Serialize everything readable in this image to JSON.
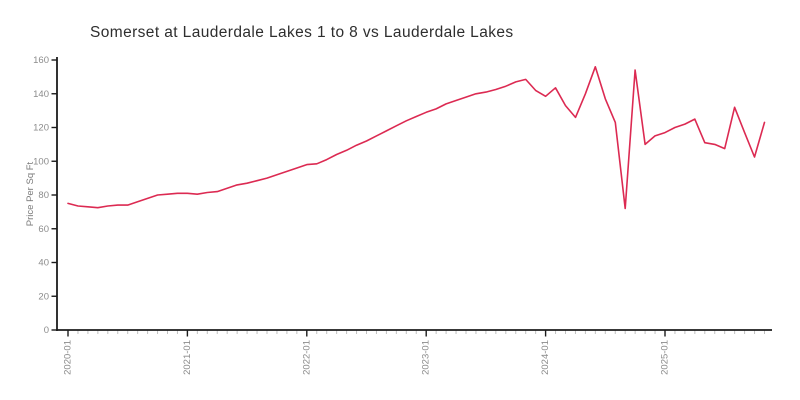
{
  "chart_data": {
    "type": "line",
    "title": "Somerset at Lauderdale Lakes 1 to 8 vs Lauderdale Lakes",
    "xlabel": "",
    "ylabel": "Price Per Sq Ft",
    "ylim": [
      0,
      160
    ],
    "y_ticks": [
      0,
      20,
      40,
      60,
      80,
      100,
      120,
      140,
      160
    ],
    "x_major_tick_labels": [
      "2020-01",
      "2021-01",
      "2022-01",
      "2023-01",
      "2024-01",
      "2025-01"
    ],
    "grid": false,
    "legend": "none",
    "line_color": "#dc2a52",
    "axis_color": "#1c1c1c",
    "minor_tick_color": "#c0c0c0",
    "tick_label_color": "#8c8c8c",
    "title_color": "#2e2e2e",
    "x": [
      "2020-01",
      "2020-02",
      "2020-03",
      "2020-04",
      "2020-05",
      "2020-06",
      "2020-07",
      "2020-08",
      "2020-09",
      "2020-10",
      "2020-11",
      "2020-12",
      "2021-01",
      "2021-02",
      "2021-03",
      "2021-04",
      "2021-05",
      "2021-06",
      "2021-07",
      "2021-08",
      "2021-09",
      "2021-10",
      "2021-11",
      "2021-12",
      "2022-01",
      "2022-02",
      "2022-03",
      "2022-04",
      "2022-05",
      "2022-06",
      "2022-07",
      "2022-08",
      "2022-09",
      "2022-10",
      "2022-11",
      "2022-12",
      "2023-01",
      "2023-02",
      "2023-03",
      "2023-04",
      "2023-05",
      "2023-06",
      "2023-07",
      "2023-08",
      "2023-09",
      "2023-10",
      "2023-11",
      "2023-12",
      "2024-01",
      "2024-02",
      "2024-03",
      "2024-04",
      "2024-05",
      "2024-06",
      "2024-07",
      "2024-08",
      "2024-09",
      "2024-10",
      "2024-11",
      "2024-12",
      "2025-01",
      "2025-02",
      "2025-03",
      "2025-04",
      "2025-05",
      "2025-06",
      "2025-07",
      "2025-08",
      "2025-09",
      "2025-10",
      "2025-11"
    ],
    "values": [
      75,
      73.5,
      73,
      72.5,
      73.5,
      74,
      74,
      76,
      78,
      80,
      80.5,
      81,
      81,
      80.5,
      81.5,
      82,
      84,
      86,
      87,
      88.5,
      90,
      92,
      94,
      96,
      98,
      98.5,
      101,
      104,
      106.5,
      109.5,
      112,
      115,
      118,
      121,
      124,
      126.5,
      129,
      131,
      134,
      136,
      138,
      140,
      141,
      142.5,
      144.5,
      147,
      148.5,
      142,
      138.5,
      143.5,
      133,
      126,
      140,
      156,
      137,
      123,
      72,
      154,
      110,
      115,
      117,
      120,
      122,
      125,
      111,
      110,
      107.5,
      132,
      117,
      102.5,
      123
    ]
  }
}
